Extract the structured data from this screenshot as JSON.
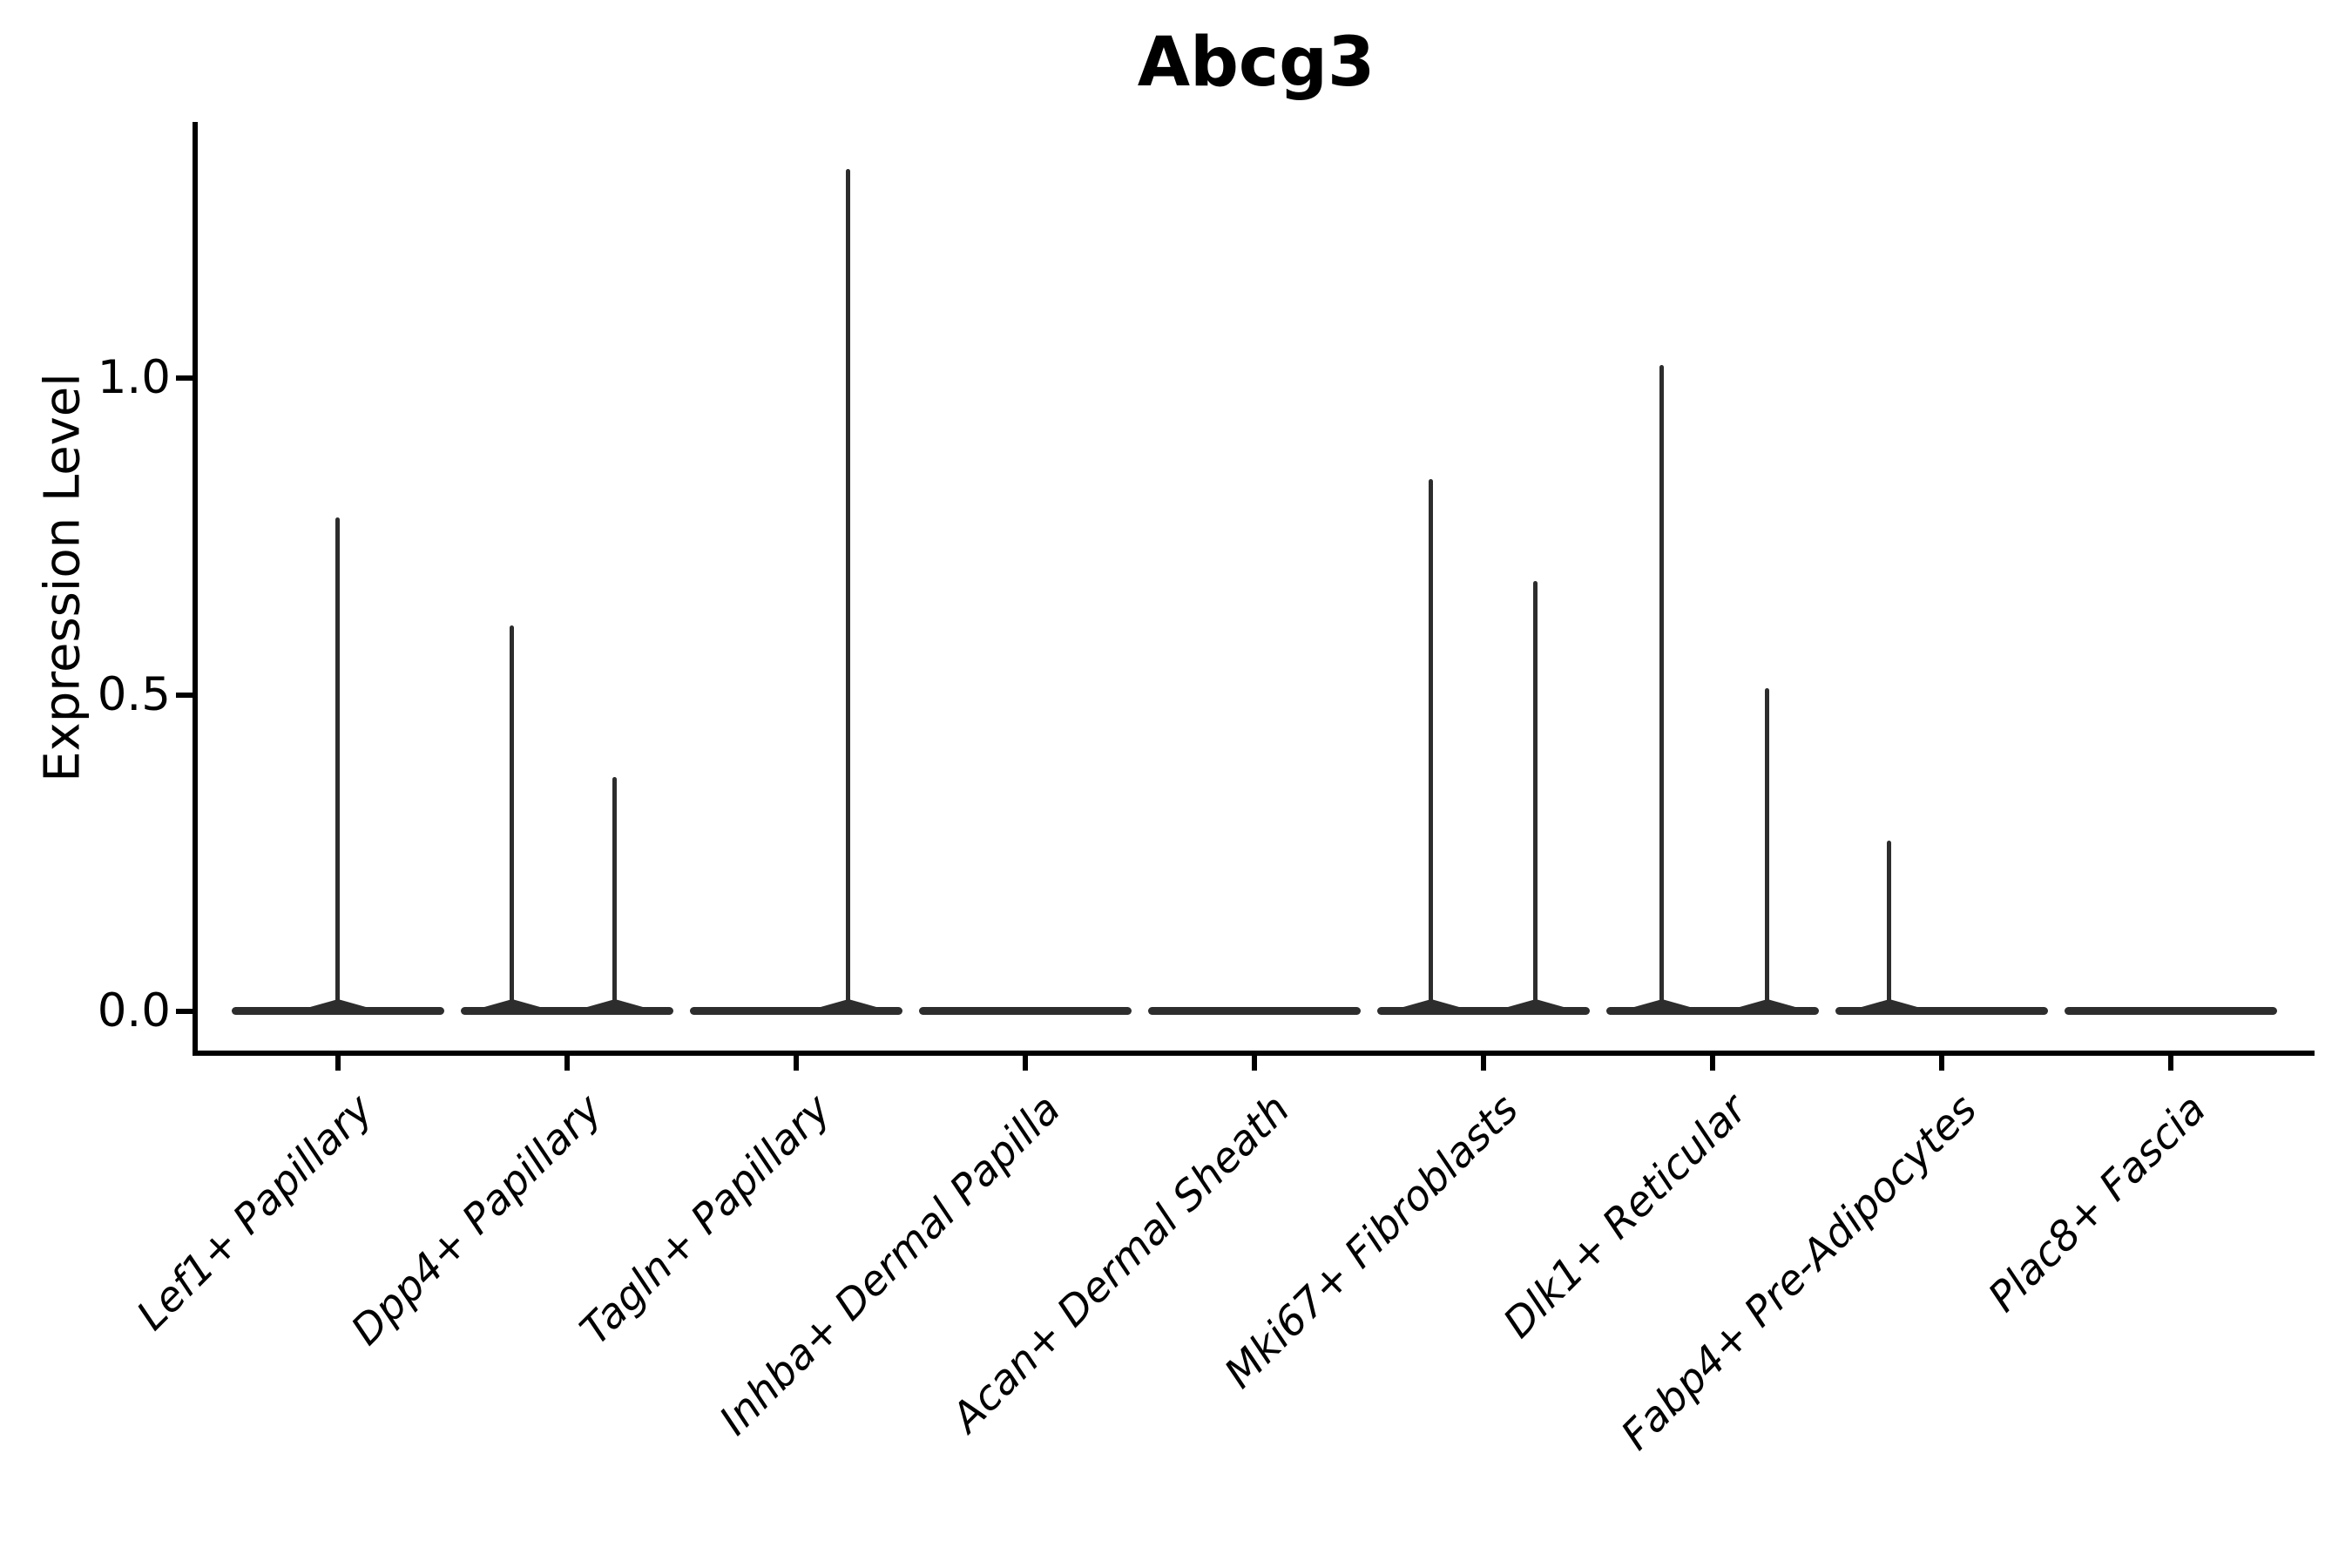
{
  "chart_data": {
    "type": "violin",
    "title": "Abcg3",
    "xlabel": "",
    "ylabel": "Expression Level",
    "ylim": [
      -0.06,
      1.4
    ],
    "yticks": [
      0.0,
      0.5,
      1.0
    ],
    "ytick_labels": [
      "0.0",
      "0.5",
      "1.0"
    ],
    "grid": false,
    "legend": "none",
    "categories": [
      "Lef1+ Papillary",
      "Dpp4+ Papillary",
      "Tagln+ Papillary",
      "Inhba+ Dermal Papilla",
      "Acan+ Dermal Sheath",
      "Mki67+ Fibroblasts",
      "Dlk1+ Reticular",
      "Fabp4+ Pre-Adipocytes",
      "Plac8+ Fascia"
    ],
    "series": [
      {
        "category": "Lef1+ Papillary",
        "baseline_value": 0.0,
        "max_expression": 0.78,
        "spikes": [
          {
            "offset": 0.0,
            "value": 0.78
          }
        ]
      },
      {
        "category": "Dpp4+ Papillary",
        "baseline_value": 0.0,
        "max_expression": 0.61,
        "spikes": [
          {
            "offset": -0.24,
            "value": 0.61
          },
          {
            "offset": 0.21,
            "value": 0.37
          }
        ]
      },
      {
        "category": "Tagln+ Papillary",
        "baseline_value": 0.0,
        "max_expression": 1.33,
        "spikes": [
          {
            "offset": 0.23,
            "value": 1.33
          }
        ]
      },
      {
        "category": "Inhba+ Dermal Papilla",
        "baseline_value": 0.0,
        "max_expression": 0.0,
        "spikes": []
      },
      {
        "category": "Acan+ Dermal Sheath",
        "baseline_value": 0.0,
        "max_expression": 0.0,
        "spikes": []
      },
      {
        "category": "Mki67+ Fibroblasts",
        "baseline_value": 0.0,
        "max_expression": 0.84,
        "spikes": [
          {
            "offset": -0.23,
            "value": 0.84
          },
          {
            "offset": 0.23,
            "value": 0.68
          }
        ]
      },
      {
        "category": "Dlk1+ Reticular",
        "baseline_value": 0.0,
        "max_expression": 1.02,
        "spikes": [
          {
            "offset": -0.22,
            "value": 1.02
          },
          {
            "offset": 0.24,
            "value": 0.51
          }
        ]
      },
      {
        "category": "Fabp4+ Pre-Adipocytes",
        "baseline_value": 0.0,
        "max_expression": 0.27,
        "spikes": [
          {
            "offset": -0.23,
            "value": 0.27
          }
        ]
      },
      {
        "category": "Plac8+ Fascia",
        "baseline_value": 0.0,
        "max_expression": 0.0,
        "spikes": []
      }
    ],
    "violin_halfwidth_frac": 0.464,
    "colors": {
      "violin": "#2d2d2d",
      "axis": "#000000",
      "text": "#000000",
      "background": "#ffffff"
    }
  }
}
